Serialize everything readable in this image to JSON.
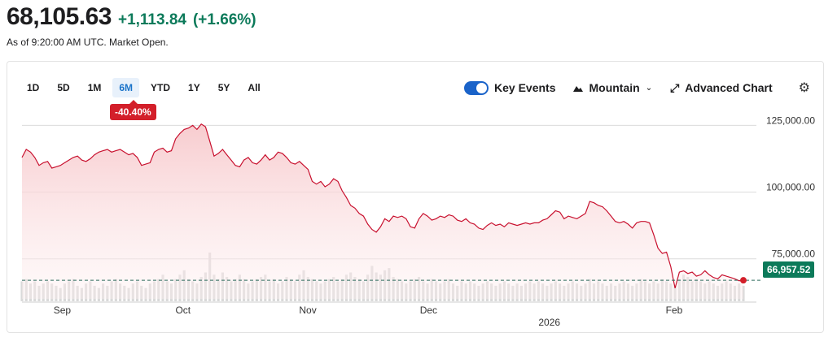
{
  "quote": {
    "price": "68,105.63",
    "change": "+1,113.84",
    "change_pct": "(+1.66%)",
    "as_of": "As of 9:20:00 AM UTC. Market Open."
  },
  "toolbar": {
    "ranges": [
      "1D",
      "5D",
      "1M",
      "6M",
      "YTD",
      "1Y",
      "5Y",
      "All"
    ],
    "active_range": "6M",
    "performance": "-40.40%",
    "key_events_label": "Key Events",
    "key_events_on": true,
    "chart_type_label": "Mountain",
    "advanced_label": "Advanced Chart"
  },
  "colors": {
    "line": "#c8102e",
    "fill_top": "#f7c9cc",
    "up": "#0c7a5a",
    "volume": "#d9d9d9",
    "badge": "#d31f2a"
  },
  "chart_data": {
    "type": "area",
    "ylim": [
      60000,
      130000
    ],
    "yticks": [
      75000,
      100000,
      125000
    ],
    "ytick_labels": [
      "75,000.00",
      "100,000.00",
      "125,000.00"
    ],
    "reference_line": 66957.52,
    "last_value_label": "66,957.52",
    "x_labels": [
      "Sep",
      "Oct",
      "Nov",
      "Dec",
      "2026",
      "Feb"
    ],
    "x_label_positions": [
      10,
      40,
      71,
      101,
      131,
      162
    ],
    "x_range": [
      0,
      180
    ],
    "values": [
      113000,
      116000,
      115000,
      113000,
      110000,
      111000,
      111500,
      109000,
      109500,
      110000,
      111000,
      112000,
      113000,
      113500,
      112000,
      111500,
      112500,
      114000,
      115000,
      115500,
      116000,
      115000,
      115500,
      116000,
      115000,
      114000,
      114500,
      113000,
      110000,
      110500,
      111000,
      115000,
      116000,
      116500,
      115000,
      115500,
      120000,
      122000,
      123500,
      124000,
      125000,
      123500,
      125500,
      124500,
      119000,
      113500,
      114500,
      116000,
      114000,
      112000,
      110000,
      109500,
      112000,
      113000,
      111000,
      110500,
      112000,
      114000,
      112000,
      113000,
      115000,
      114500,
      113000,
      111000,
      110500,
      111500,
      110000,
      108500,
      104000,
      103000,
      104000,
      102000,
      103000,
      105000,
      104000,
      100500,
      98000,
      95000,
      94000,
      92000,
      91000,
      88000,
      86000,
      85000,
      87000,
      90000,
      89000,
      91000,
      90500,
      91000,
      90000,
      87000,
      86500,
      90000,
      92000,
      91000,
      89500,
      90000,
      91000,
      90500,
      91500,
      91000,
      89500,
      89000,
      90000,
      88500,
      88000,
      86500,
      86000,
      87500,
      88500,
      87500,
      88000,
      87000,
      88500,
      88000,
      87500,
      88000,
      88500,
      88000,
      88500,
      88500,
      89500,
      90000,
      91500,
      93000,
      92500,
      90000,
      91000,
      90500,
      90000,
      91000,
      92000,
      96500,
      96000,
      95000,
      94500,
      93000,
      91000,
      89000,
      88500,
      89000,
      88000,
      86500,
      88500,
      89000,
      89000,
      88500,
      84000,
      79000,
      77000,
      77500,
      72000,
      64000,
      70000,
      70500,
      69500,
      70000,
      68500,
      69000,
      70500,
      69000,
      68000,
      67500,
      69000,
      68500,
      68000,
      67500,
      66800,
      66957
    ],
    "volume": [
      9,
      10,
      8,
      9,
      7,
      8,
      9,
      8,
      7,
      6,
      8,
      9,
      10,
      7,
      6,
      8,
      9,
      7,
      6,
      8,
      7,
      9,
      10,
      8,
      7,
      6,
      8,
      9,
      7,
      6,
      8,
      9,
      10,
      12,
      9,
      8,
      10,
      12,
      14,
      10,
      9,
      8,
      11,
      13,
      22,
      12,
      10,
      13,
      11,
      9,
      10,
      12,
      10,
      8,
      9,
      10,
      11,
      12,
      9,
      10,
      8,
      9,
      11,
      10,
      9,
      12,
      14,
      11,
      10,
      9,
      8,
      9,
      10,
      11,
      9,
      10,
      12,
      13,
      11,
      10,
      9,
      12,
      16,
      13,
      12,
      14,
      15,
      11,
      10,
      9,
      8,
      9,
      10,
      11,
      9,
      8,
      10,
      9,
      8,
      9,
      10,
      8,
      7,
      9,
      8,
      9,
      8,
      7,
      8,
      9,
      8,
      7,
      8,
      9,
      8,
      7,
      8,
      7,
      8,
      9,
      8,
      9,
      8,
      7,
      8,
      9,
      8,
      7,
      8,
      9,
      8,
      7,
      8,
      10,
      8,
      9,
      8,
      7,
      8,
      7,
      8,
      9,
      8,
      7,
      8,
      10,
      9,
      8,
      9,
      8,
      10,
      9,
      8,
      7,
      10,
      12,
      11,
      9,
      10,
      9,
      8,
      9,
      8,
      7,
      8,
      9,
      8,
      7,
      8,
      7
    ]
  }
}
